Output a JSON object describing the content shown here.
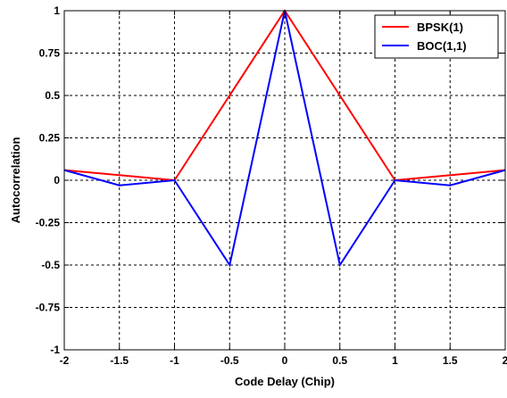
{
  "chart_data": {
    "type": "line",
    "title": "",
    "xlabel": "Code Delay (Chip)",
    "ylabel": "Autocorrelation",
    "xlim": [
      -2,
      2
    ],
    "ylim": [
      -1,
      1
    ],
    "xticks": [
      -2,
      -1.5,
      -1,
      -0.5,
      0,
      0.5,
      1,
      1.5,
      2
    ],
    "xtick_labels": [
      "-2",
      "-1.5",
      "-1",
      "-0.5",
      "0",
      "0.5",
      "1",
      "1.5",
      "2"
    ],
    "yticks": [
      -1,
      -0.75,
      -0.5,
      -0.25,
      0,
      0.25,
      0.5,
      0.75,
      1
    ],
    "ytick_labels": [
      "-1",
      "-0.75",
      "-0.5",
      "-0.25",
      "0",
      "0.25",
      "0.5",
      "0.75",
      "1"
    ],
    "grid": true,
    "legend_position": "top-right",
    "series": [
      {
        "name": "BPSK(1)",
        "color": "#ff0000",
        "x": [
          -2,
          -1,
          0,
          1,
          2
        ],
        "y": [
          0.06,
          0.0,
          1.0,
          0.0,
          0.06
        ]
      },
      {
        "name": "BOC(1,1)",
        "color": "#0000ff",
        "x": [
          -2,
          -1.5,
          -1,
          -0.5,
          0,
          0.5,
          1,
          1.5,
          2
        ],
        "y": [
          0.06,
          -0.03,
          0.0,
          -0.5,
          1.0,
          -0.5,
          0.0,
          -0.03,
          0.06
        ]
      }
    ]
  }
}
